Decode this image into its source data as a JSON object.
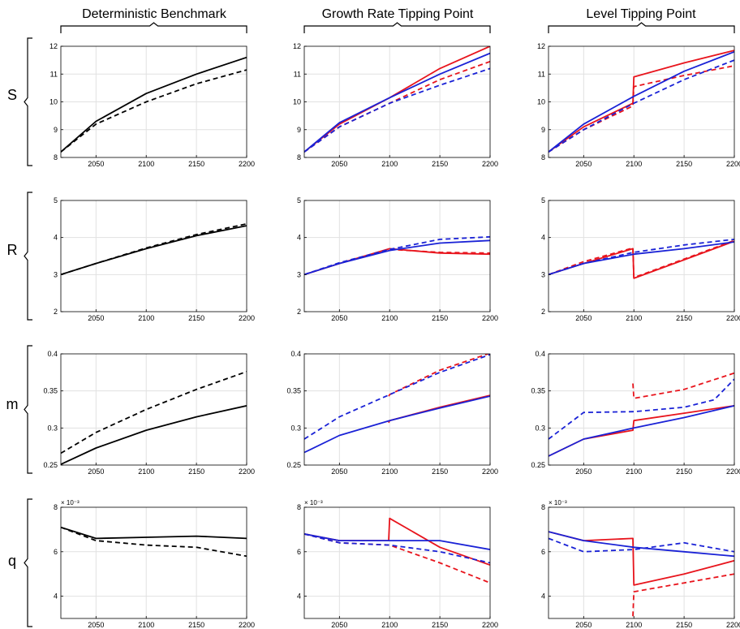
{
  "column_titles": [
    "Deterministic Benchmark",
    "Growth Rate Tipping Point",
    "Level Tipping Point"
  ],
  "row_labels": [
    "S",
    "R",
    "m",
    "q"
  ],
  "colors": {
    "black": "#000000",
    "red": "#e8141c",
    "blue": "#1a22d6",
    "grid": "#e1e1e1"
  },
  "chart_data": [
    {
      "row": "S",
      "column": "Deterministic Benchmark",
      "type": "line",
      "xlim": [
        2015,
        2200
      ],
      "ylim": [
        8,
        12
      ],
      "xticks": [
        2050,
        2100,
        2150,
        2200
      ],
      "yticks": [
        8,
        9,
        10,
        11,
        12
      ],
      "grid": true,
      "series": [
        {
          "color": "black",
          "style": "solid",
          "x": [
            2015,
            2050,
            2100,
            2150,
            2200
          ],
          "y": [
            8.2,
            9.3,
            10.3,
            11.0,
            11.6
          ]
        },
        {
          "color": "black",
          "style": "dashed",
          "x": [
            2015,
            2050,
            2100,
            2150,
            2200
          ],
          "y": [
            8.2,
            9.2,
            10.0,
            10.65,
            11.15
          ]
        }
      ]
    },
    {
      "row": "S",
      "column": "Growth Rate Tipping Point",
      "type": "line",
      "xlim": [
        2015,
        2200
      ],
      "ylim": [
        8,
        12
      ],
      "xticks": [
        2050,
        2100,
        2150,
        2200
      ],
      "yticks": [
        8,
        9,
        10,
        11,
        12
      ],
      "grid": true,
      "series": [
        {
          "color": "red",
          "style": "solid",
          "x": [
            2015,
            2050,
            2100,
            2150,
            2200
          ],
          "y": [
            8.2,
            9.2,
            10.15,
            11.2,
            12.0
          ]
        },
        {
          "color": "red",
          "style": "dashed",
          "x": [
            2015,
            2050,
            2100,
            2150,
            2200
          ],
          "y": [
            8.2,
            9.1,
            9.95,
            10.8,
            11.45
          ]
        },
        {
          "color": "blue",
          "style": "solid",
          "x": [
            2015,
            2050,
            2100,
            2150,
            2200
          ],
          "y": [
            8.2,
            9.25,
            10.15,
            11.0,
            11.75
          ]
        },
        {
          "color": "blue",
          "style": "dashed",
          "x": [
            2015,
            2050,
            2100,
            2150,
            2200
          ],
          "y": [
            8.2,
            9.1,
            9.95,
            10.6,
            11.2
          ]
        }
      ]
    },
    {
      "row": "S",
      "column": "Level Tipping Point",
      "type": "line",
      "xlim": [
        2015,
        2200
      ],
      "ylim": [
        8,
        12
      ],
      "xticks": [
        2050,
        2100,
        2150,
        2200
      ],
      "yticks": [
        8,
        9,
        10,
        11,
        12
      ],
      "grid": true,
      "series": [
        {
          "color": "red",
          "style": "solid",
          "x": [
            2015,
            2050,
            2099,
            2100,
            2150,
            2200
          ],
          "y": [
            8.2,
            9.1,
            9.95,
            10.9,
            11.4,
            11.85
          ]
        },
        {
          "color": "red",
          "style": "dashed",
          "x": [
            2015,
            2050,
            2099,
            2100,
            2150,
            2200
          ],
          "y": [
            8.2,
            9.0,
            9.85,
            10.55,
            10.95,
            11.3
          ]
        },
        {
          "color": "blue",
          "style": "solid",
          "x": [
            2015,
            2050,
            2100,
            2150,
            2200
          ],
          "y": [
            8.2,
            9.2,
            10.2,
            11.1,
            11.8
          ]
        },
        {
          "color": "blue",
          "style": "dashed",
          "x": [
            2015,
            2050,
            2100,
            2150,
            2200
          ],
          "y": [
            8.2,
            9.0,
            9.95,
            10.8,
            11.5
          ]
        }
      ]
    },
    {
      "row": "R",
      "column": "Deterministic Benchmark",
      "type": "line",
      "xlim": [
        2015,
        2200
      ],
      "ylim": [
        2,
        5
      ],
      "xticks": [
        2050,
        2100,
        2150,
        2200
      ],
      "yticks": [
        2,
        3,
        4,
        5
      ],
      "grid": true,
      "series": [
        {
          "color": "black",
          "style": "solid",
          "x": [
            2015,
            2050,
            2100,
            2150,
            2200
          ],
          "y": [
            3.0,
            3.3,
            3.7,
            4.05,
            4.32
          ]
        },
        {
          "color": "black",
          "style": "dashed",
          "x": [
            2015,
            2050,
            2100,
            2150,
            2200
          ],
          "y": [
            3.0,
            3.3,
            3.72,
            4.08,
            4.37
          ]
        }
      ]
    },
    {
      "row": "R",
      "column": "Growth Rate Tipping Point",
      "type": "line",
      "xlim": [
        2015,
        2200
      ],
      "ylim": [
        2,
        5
      ],
      "xticks": [
        2050,
        2100,
        2150,
        2200
      ],
      "yticks": [
        2,
        3,
        4,
        5
      ],
      "grid": true,
      "series": [
        {
          "color": "red",
          "style": "solid",
          "x": [
            2015,
            2050,
            2100,
            2150,
            2200
          ],
          "y": [
            3.0,
            3.3,
            3.7,
            3.58,
            3.55
          ]
        },
        {
          "color": "red",
          "style": "dashed",
          "x": [
            2015,
            2050,
            2100,
            2150,
            2200
          ],
          "y": [
            3.0,
            3.3,
            3.68,
            3.6,
            3.58
          ]
        },
        {
          "color": "blue",
          "style": "solid",
          "x": [
            2015,
            2050,
            2100,
            2150,
            2200
          ],
          "y": [
            3.0,
            3.3,
            3.65,
            3.85,
            3.92
          ]
        },
        {
          "color": "blue",
          "style": "dashed",
          "x": [
            2015,
            2050,
            2100,
            2150,
            2200
          ],
          "y": [
            3.0,
            3.32,
            3.68,
            3.95,
            4.02
          ]
        }
      ]
    },
    {
      "row": "R",
      "column": "Level Tipping Point",
      "type": "line",
      "xlim": [
        2015,
        2200
      ],
      "ylim": [
        2,
        5
      ],
      "xticks": [
        2050,
        2100,
        2150,
        2200
      ],
      "yticks": [
        2,
        3,
        4,
        5
      ],
      "grid": true,
      "series": [
        {
          "color": "red",
          "style": "solid",
          "x": [
            2015,
            2050,
            2099,
            2100,
            2150,
            2200
          ],
          "y": [
            3.0,
            3.3,
            3.7,
            2.9,
            3.4,
            3.9
          ]
        },
        {
          "color": "red",
          "style": "dashed",
          "x": [
            2015,
            2050,
            2099,
            2100,
            2150,
            2200
          ],
          "y": [
            3.0,
            3.35,
            3.72,
            2.92,
            3.42,
            3.92
          ]
        },
        {
          "color": "blue",
          "style": "solid",
          "x": [
            2015,
            2050,
            2100,
            2150,
            2200
          ],
          "y": [
            3.0,
            3.3,
            3.55,
            3.7,
            3.88
          ]
        },
        {
          "color": "blue",
          "style": "dashed",
          "x": [
            2015,
            2050,
            2100,
            2150,
            2200
          ],
          "y": [
            3.0,
            3.3,
            3.6,
            3.8,
            3.95
          ]
        }
      ]
    },
    {
      "row": "m",
      "column": "Deterministic Benchmark",
      "type": "line",
      "xlim": [
        2015,
        2200
      ],
      "ylim": [
        0.25,
        0.4
      ],
      "xticks": [
        2050,
        2100,
        2150,
        2200
      ],
      "yticks": [
        0.25,
        0.3,
        0.35,
        0.4
      ],
      "grid": true,
      "series": [
        {
          "color": "black",
          "style": "solid",
          "x": [
            2015,
            2050,
            2100,
            2150,
            2200
          ],
          "y": [
            0.251,
            0.273,
            0.297,
            0.315,
            0.33
          ]
        },
        {
          "color": "black",
          "style": "dashed",
          "x": [
            2015,
            2050,
            2100,
            2150,
            2200
          ],
          "y": [
            0.266,
            0.294,
            0.325,
            0.352,
            0.376
          ]
        }
      ]
    },
    {
      "row": "m",
      "column": "Growth Rate Tipping Point",
      "type": "line",
      "xlim": [
        2015,
        2200
      ],
      "ylim": [
        0.25,
        0.4
      ],
      "xticks": [
        2050,
        2100,
        2150,
        2200
      ],
      "yticks": [
        0.25,
        0.3,
        0.35,
        0.4
      ],
      "grid": true,
      "series": [
        {
          "color": "red",
          "style": "solid",
          "x": [
            2099,
            2100,
            2150,
            2200
          ],
          "y": [
            0.307,
            0.31,
            0.328,
            0.344
          ]
        },
        {
          "color": "red",
          "style": "dashed",
          "x": [
            2099,
            2100,
            2150,
            2200
          ],
          "y": [
            0.343,
            0.345,
            0.378,
            0.401
          ]
        },
        {
          "color": "blue",
          "style": "solid",
          "x": [
            2015,
            2050,
            2100,
            2150,
            2200
          ],
          "y": [
            0.267,
            0.29,
            0.31,
            0.327,
            0.343
          ]
        },
        {
          "color": "blue",
          "style": "dashed",
          "x": [
            2015,
            2050,
            2100,
            2150,
            2200
          ],
          "y": [
            0.285,
            0.315,
            0.345,
            0.375,
            0.399
          ]
        }
      ]
    },
    {
      "row": "m",
      "column": "Level Tipping Point",
      "type": "line",
      "xlim": [
        2015,
        2200
      ],
      "ylim": [
        0.25,
        0.4
      ],
      "xticks": [
        2050,
        2100,
        2150,
        2200
      ],
      "yticks": [
        0.25,
        0.3,
        0.35,
        0.4
      ],
      "grid": true,
      "series": [
        {
          "color": "red",
          "style": "solid",
          "x": [
            2015,
            2050,
            2099,
            2100,
            2150,
            2200
          ],
          "y": [
            0.262,
            0.285,
            0.297,
            0.31,
            0.32,
            0.33
          ]
        },
        {
          "color": "red",
          "style": "dashed",
          "x": [
            2099,
            2100,
            2150,
            2200
          ],
          "y": [
            0.36,
            0.34,
            0.352,
            0.374
          ]
        },
        {
          "color": "blue",
          "style": "solid",
          "x": [
            2015,
            2050,
            2100,
            2150,
            2200
          ],
          "y": [
            0.262,
            0.285,
            0.3,
            0.314,
            0.33
          ]
        },
        {
          "color": "blue",
          "style": "dashed",
          "x": [
            2015,
            2050,
            2100,
            2150,
            2180,
            2200
          ],
          "y": [
            0.285,
            0.321,
            0.322,
            0.328,
            0.338,
            0.366
          ]
        }
      ]
    },
    {
      "row": "q",
      "column": "Deterministic Benchmark",
      "type": "line",
      "xlim": [
        2015,
        2200
      ],
      "ylim": [
        0.003,
        0.008
      ],
      "xticks": [
        2050,
        2100,
        2150,
        2200
      ],
      "yticks": [
        0.004,
        0.006,
        0.008
      ],
      "ytick_labels": [
        "4",
        "6",
        "8"
      ],
      "exponent_label": "× 10⁻³",
      "grid": true,
      "series": [
        {
          "color": "black",
          "style": "solid",
          "x": [
            2015,
            2050,
            2100,
            2150,
            2200
          ],
          "y": [
            0.0071,
            0.0066,
            0.00665,
            0.0067,
            0.0066
          ]
        },
        {
          "color": "black",
          "style": "dashed",
          "x": [
            2015,
            2050,
            2100,
            2150,
            2200
          ],
          "y": [
            0.0071,
            0.0065,
            0.0063,
            0.0062,
            0.0058
          ]
        }
      ]
    },
    {
      "row": "q",
      "column": "Growth Rate Tipping Point",
      "type": "line",
      "xlim": [
        2015,
        2200
      ],
      "ylim": [
        0.003,
        0.008
      ],
      "xticks": [
        2050,
        2100,
        2150,
        2200
      ],
      "yticks": [
        0.004,
        0.006,
        0.008
      ],
      "ytick_labels": [
        "4",
        "6",
        "8"
      ],
      "exponent_label": "× 10⁻³",
      "grid": true,
      "series": [
        {
          "color": "red",
          "style": "solid",
          "x": [
            2015,
            2050,
            2099,
            2100,
            2150,
            2200
          ],
          "y": [
            0.0068,
            0.0065,
            0.0065,
            0.0075,
            0.0062,
            0.0054
          ]
        },
        {
          "color": "red",
          "style": "dashed",
          "x": [
            2015,
            2050,
            2100,
            2150,
            2200
          ],
          "y": [
            0.0068,
            0.0064,
            0.0063,
            0.0055,
            0.0046
          ]
        },
        {
          "color": "blue",
          "style": "solid",
          "x": [
            2015,
            2050,
            2100,
            2150,
            2200
          ],
          "y": [
            0.0068,
            0.0065,
            0.0065,
            0.0065,
            0.0061
          ]
        },
        {
          "color": "blue",
          "style": "dashed",
          "x": [
            2015,
            2050,
            2100,
            2150,
            2200
          ],
          "y": [
            0.0068,
            0.0064,
            0.0063,
            0.006,
            0.0055
          ]
        }
      ]
    },
    {
      "row": "q",
      "column": "Level Tipping Point",
      "type": "line",
      "xlim": [
        2015,
        2200
      ],
      "ylim": [
        0.003,
        0.008
      ],
      "xticks": [
        2050,
        2100,
        2150,
        2200
      ],
      "yticks": [
        0.004,
        0.006,
        0.008
      ],
      "ytick_labels": [
        "4",
        "6",
        "8"
      ],
      "exponent_label": "× 10⁻³",
      "grid": true,
      "series": [
        {
          "color": "red",
          "style": "solid",
          "x": [
            2015,
            2050,
            2099,
            2100,
            2150,
            2200
          ],
          "y": [
            0.0069,
            0.0065,
            0.0066,
            0.0045,
            0.005,
            0.0056
          ]
        },
        {
          "color": "red",
          "style": "dashed",
          "x": [
            2099,
            2100,
            2150,
            2200
          ],
          "y": [
            0.0031,
            0.0042,
            0.0046,
            0.005
          ]
        },
        {
          "color": "blue",
          "style": "solid",
          "x": [
            2015,
            2050,
            2100,
            2150,
            2200
          ],
          "y": [
            0.0069,
            0.0065,
            0.0062,
            0.006,
            0.0058
          ]
        },
        {
          "color": "blue",
          "style": "dashed",
          "x": [
            2015,
            2050,
            2100,
            2150,
            2200
          ],
          "y": [
            0.0066,
            0.006,
            0.0061,
            0.0064,
            0.006
          ]
        }
      ]
    }
  ]
}
